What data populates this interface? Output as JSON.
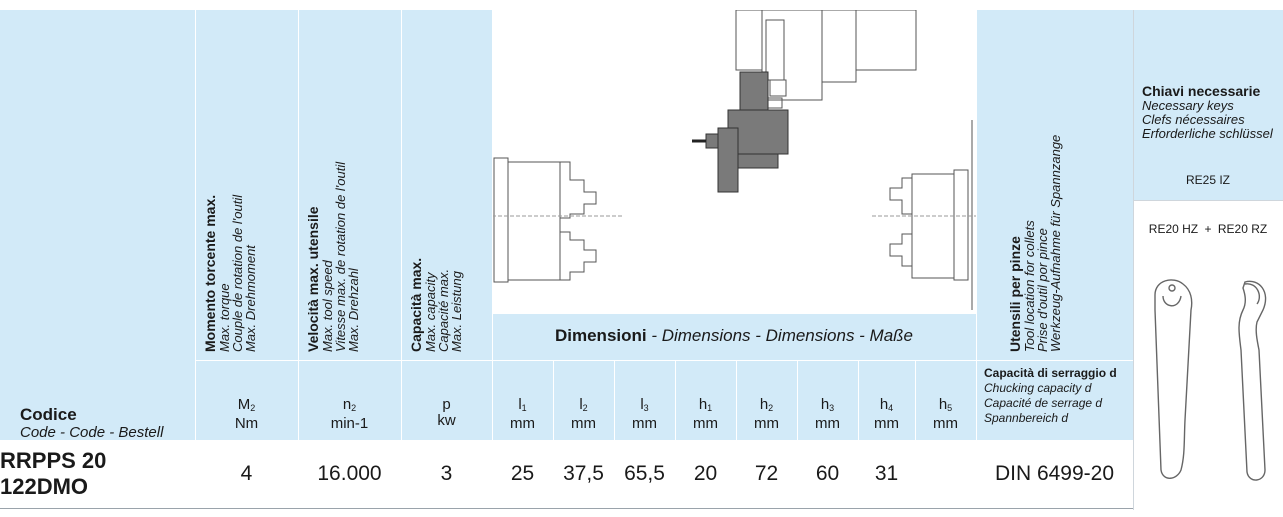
{
  "columns": {
    "torque": {
      "title": "Momento torcente max.",
      "lines": [
        "Max. torque",
        "Couple de rotation de l'outil",
        "Max. Drehmoment"
      ],
      "symbol": "M",
      "symbol_sub": "2",
      "unit": "Nm"
    },
    "speed": {
      "title": "Velocità max. utensile",
      "lines": [
        "Max. tool speed",
        "Vitesse max. de rotation de l'outil",
        "Max. Drehzahl"
      ],
      "symbol": "n",
      "symbol_sub": "2",
      "unit": "min-1"
    },
    "capacity": {
      "title": "Capacità max.",
      "lines": [
        "Max. capacity",
        "Capacité max.",
        "Max. Leistung"
      ],
      "symbol": "p",
      "unit": "kw"
    },
    "collets": {
      "title": "Utensili per pinze",
      "lines": [
        "Tool location for collets",
        "Prise d'outil por pince",
        "Werkzeug-Aufnahme für Spannzange"
      ]
    }
  },
  "code_header": {
    "title": "Codice",
    "subtitle": "Code - Code - Bestell"
  },
  "dimensions_caption": {
    "bold": "Dimensioni",
    "rest": " - Dimensions - Dimensions - Maße"
  },
  "dims": [
    {
      "sym": "l",
      "sub": "1",
      "unit": "mm"
    },
    {
      "sym": "l",
      "sub": "2",
      "unit": "mm"
    },
    {
      "sym": "l",
      "sub": "3",
      "unit": "mm"
    },
    {
      "sym": "h",
      "sub": "1",
      "unit": "mm"
    },
    {
      "sym": "h",
      "sub": "2",
      "unit": "mm"
    },
    {
      "sym": "h",
      "sub": "3",
      "unit": "mm"
    },
    {
      "sym": "h",
      "sub": "4",
      "unit": "mm"
    },
    {
      "sym": "h",
      "sub": "5",
      "unit": "mm"
    }
  ],
  "chucking": {
    "title": "Capacità di serraggio d",
    "lines": [
      "Chucking capacity d",
      "Capacité de serrage d",
      "Spannbereich d"
    ]
  },
  "keys": {
    "title": "Chiavi necessarie",
    "lines": [
      "Necessary keys",
      "Clefs nécessaires",
      "Erforderliche schlüssel"
    ],
    "key1": "RE25 IZ",
    "key2a": "RE20 HZ",
    "plus": "+",
    "key2b": "RE20 RZ"
  },
  "row": {
    "code": "RRPPS 20 122DMO",
    "torque": "4",
    "speed": "16.000",
    "capacity": "3",
    "dims": [
      "25",
      "37,5",
      "65,5",
      "20",
      "72",
      "60",
      "31",
      ""
    ],
    "collet": "DIN 6499-20"
  }
}
